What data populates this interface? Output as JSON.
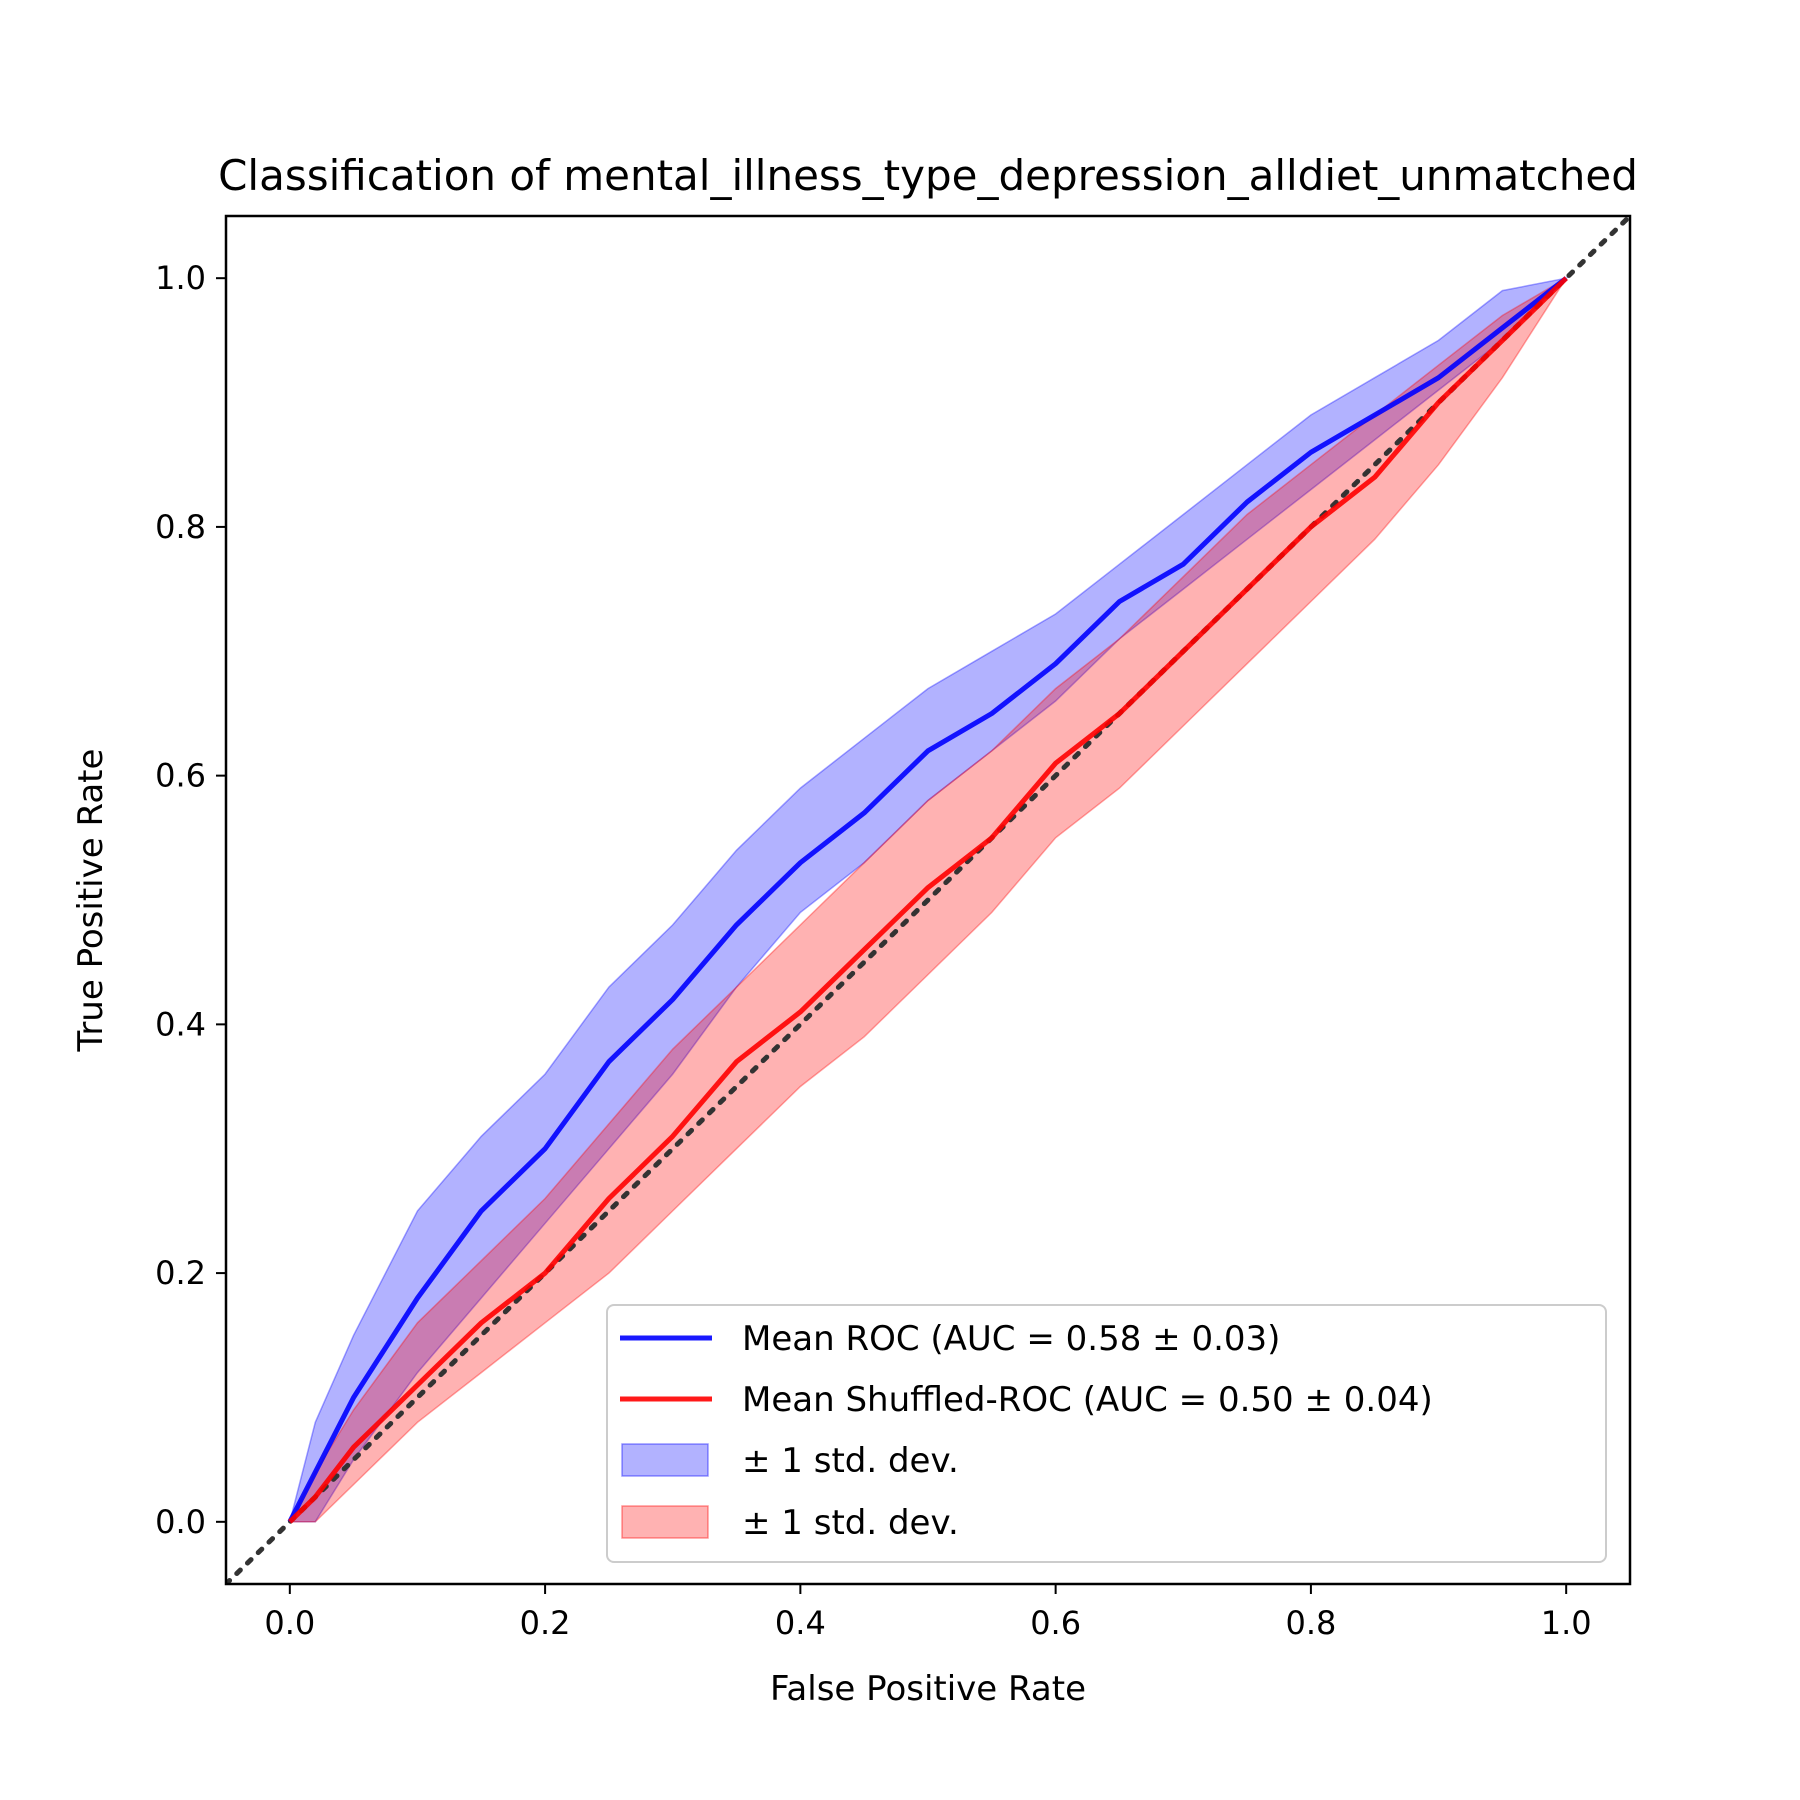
{
  "chart_data": {
    "type": "line",
    "title": "Classification of mental_illness_type_depression_alldiet_unmatched",
    "xlabel": "False Positive Rate",
    "ylabel": "True Positive Rate",
    "xlim": [
      -0.05,
      1.05
    ],
    "ylim": [
      -0.05,
      1.05
    ],
    "xticks": [
      "0.0",
      "0.2",
      "0.4",
      "0.6",
      "0.8",
      "1.0"
    ],
    "yticks": [
      "0.0",
      "0.2",
      "0.4",
      "0.6",
      "0.8",
      "1.0"
    ],
    "grid": false,
    "legend_position": "bottom-right",
    "x": [
      0.0,
      0.02,
      0.05,
      0.1,
      0.15,
      0.2,
      0.25,
      0.3,
      0.35,
      0.4,
      0.45,
      0.5,
      0.55,
      0.6,
      0.65,
      0.7,
      0.75,
      0.8,
      0.85,
      0.9,
      0.95,
      1.0
    ],
    "series": [
      {
        "name": "Mean ROC (AUC = 0.58 ± 0.03)",
        "color": "#0000ff",
        "values": [
          0.0,
          0.04,
          0.1,
          0.18,
          0.25,
          0.3,
          0.37,
          0.42,
          0.48,
          0.53,
          0.57,
          0.62,
          0.65,
          0.69,
          0.74,
          0.77,
          0.82,
          0.86,
          0.89,
          0.92,
          0.96,
          1.0
        ]
      },
      {
        "name": "Mean Shuffled-ROC (AUC = 0.50 ± 0.04)",
        "color": "#ff0000",
        "values": [
          0.0,
          0.02,
          0.06,
          0.11,
          0.16,
          0.2,
          0.26,
          0.31,
          0.37,
          0.41,
          0.46,
          0.51,
          0.55,
          0.61,
          0.65,
          0.7,
          0.75,
          0.8,
          0.84,
          0.9,
          0.95,
          1.0
        ]
      }
    ],
    "bands": [
      {
        "name": "± 1 std. dev.",
        "color": "#0000ff",
        "lower": [
          0.0,
          0.0,
          0.05,
          0.12,
          0.18,
          0.24,
          0.3,
          0.36,
          0.43,
          0.49,
          0.53,
          0.58,
          0.62,
          0.66,
          0.71,
          0.75,
          0.79,
          0.83,
          0.87,
          0.91,
          0.95,
          1.0
        ],
        "upper": [
          0.0,
          0.08,
          0.15,
          0.25,
          0.31,
          0.36,
          0.43,
          0.48,
          0.54,
          0.59,
          0.63,
          0.67,
          0.7,
          0.73,
          0.77,
          0.81,
          0.85,
          0.89,
          0.92,
          0.95,
          0.99,
          1.0
        ]
      },
      {
        "name": "± 1 std. dev.",
        "color": "#ff0000",
        "lower": [
          0.0,
          0.0,
          0.03,
          0.08,
          0.12,
          0.16,
          0.2,
          0.25,
          0.3,
          0.35,
          0.39,
          0.44,
          0.49,
          0.55,
          0.59,
          0.64,
          0.69,
          0.74,
          0.79,
          0.85,
          0.92,
          1.0
        ],
        "upper": [
          0.0,
          0.04,
          0.09,
          0.16,
          0.21,
          0.26,
          0.32,
          0.38,
          0.43,
          0.48,
          0.53,
          0.58,
          0.62,
          0.67,
          0.71,
          0.76,
          0.81,
          0.85,
          0.89,
          0.93,
          0.97,
          1.0
        ]
      }
    ],
    "reference_line": {
      "style": "dotted",
      "color": "#333333"
    },
    "legend": [
      {
        "label": "Mean ROC (AUC = 0.58 ± 0.03)",
        "kind": "line",
        "color": "#0000ff"
      },
      {
        "label": "Mean Shuffled-ROC (AUC = 0.50 ± 0.04)",
        "kind": "line",
        "color": "#ff0000"
      },
      {
        "label": "± 1 std. dev.",
        "kind": "patch",
        "color": "#0000ff"
      },
      {
        "label": "± 1 std. dev.",
        "kind": "patch",
        "color": "#ff0000"
      }
    ]
  }
}
